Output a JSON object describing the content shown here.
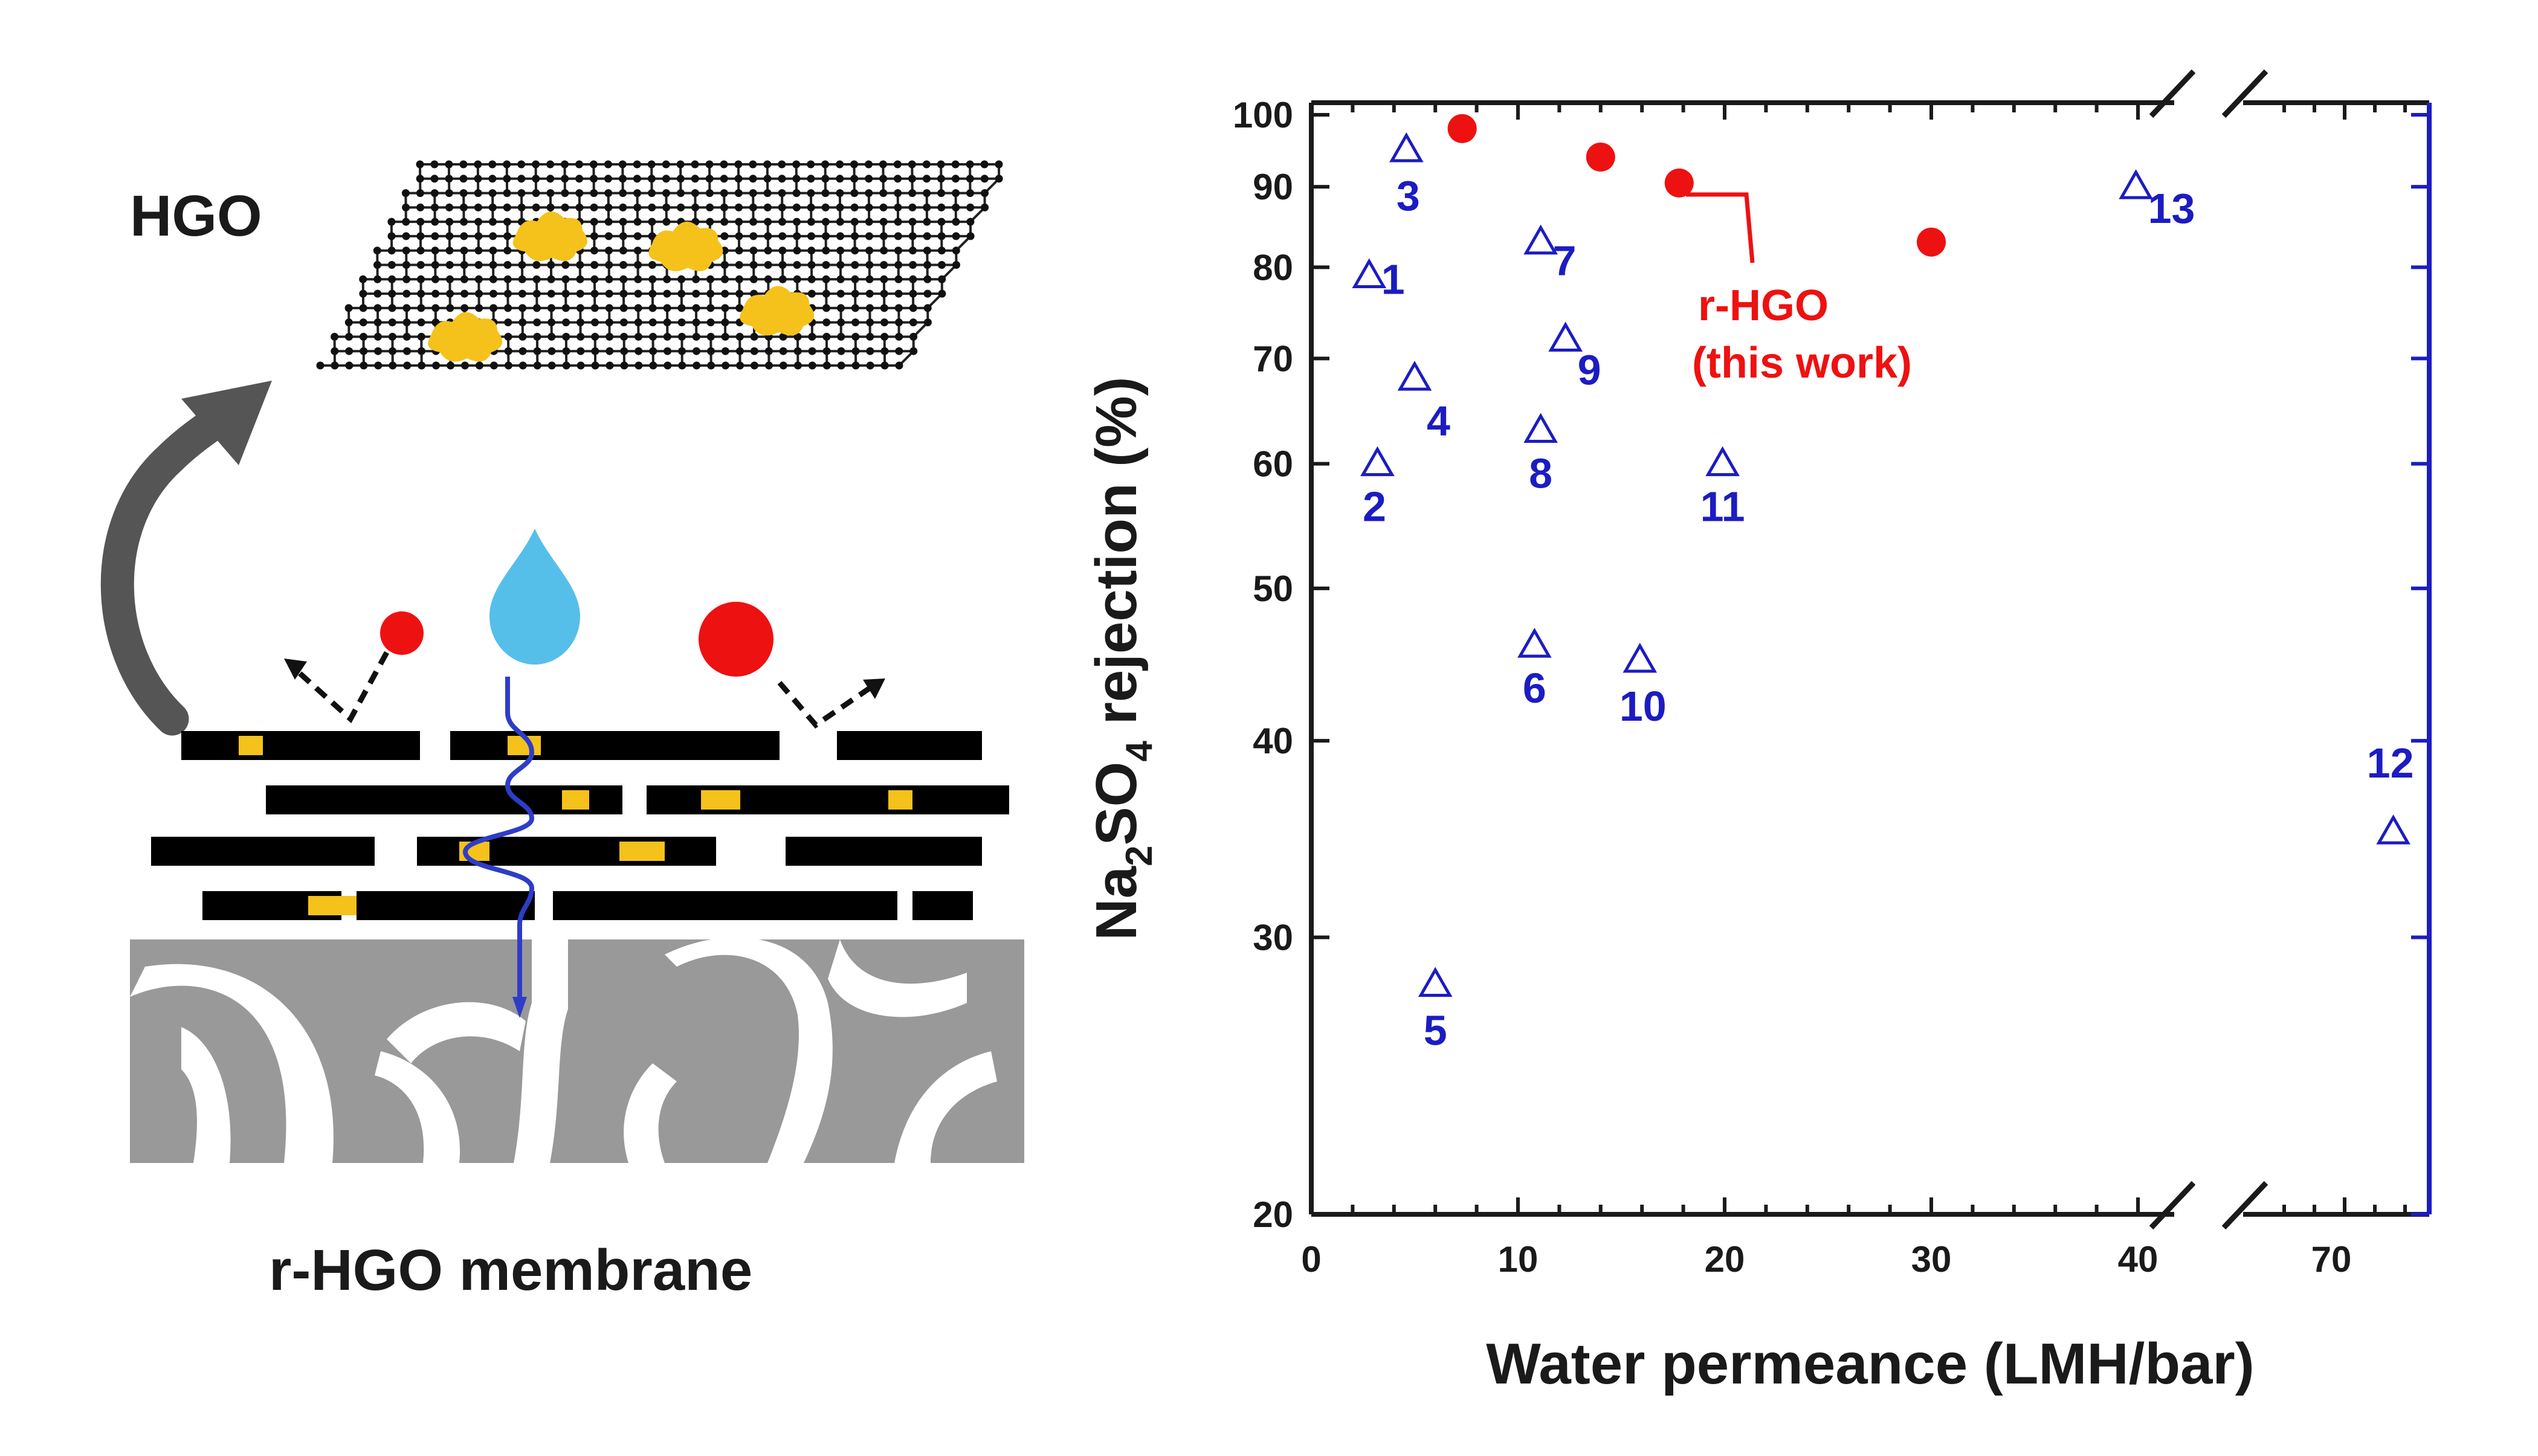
{
  "schematic": {
    "top_label": "HGO",
    "bottom_label": "r-HGO membrane",
    "colors": {
      "sheet": "#000000",
      "holes": "#f5c21b",
      "water": "#55bfea",
      "ion": "#ee1111",
      "water_path": "#2e3cc8",
      "substrate": "#999999",
      "arrow": "#555555"
    }
  },
  "chart_data": {
    "type": "scatter",
    "xlabel": "Water permeance (LMH/bar)",
    "ylabel_parts": {
      "main_pre": "Na",
      "sub1": "2",
      "mid": "SO",
      "sub2": "4",
      "main_post": " rejection (%)"
    },
    "x_scale": "broken-linear",
    "x_segments": [
      {
        "range": [
          0,
          40
        ]
      },
      {
        "range": [
          70,
          70
        ]
      }
    ],
    "x_ticks": [
      0,
      10,
      20,
      30,
      40,
      70
    ],
    "x_tick_labels": [
      "0",
      "10",
      "20",
      "30",
      "40",
      "70"
    ],
    "y_scale": "log",
    "ylim": [
      20,
      100
    ],
    "y_ticks": [
      20,
      30,
      40,
      50,
      60,
      70,
      80,
      90,
      100
    ],
    "y_tick_labels": [
      "20",
      "30",
      "40",
      "50",
      "60",
      "70",
      "80",
      "90",
      "100"
    ],
    "series": [
      {
        "marker": "circle",
        "color": "#ee1111",
        "label_lines": [
          "r-HGO",
          "(this work)"
        ],
        "points": [
          {
            "x": 7.3,
            "y": 98
          },
          {
            "x": 14.0,
            "y": 94
          },
          {
            "x": 17.8,
            "y": 90.5
          },
          {
            "x": 30.0,
            "y": 83
          }
        ]
      },
      {
        "marker": "triangle-open",
        "color": "#1c1cc2",
        "points": [
          {
            "x": 2.8,
            "y": 79,
            "label": "1"
          },
          {
            "x": 3.2,
            "y": 60,
            "label": "2"
          },
          {
            "x": 4.6,
            "y": 95,
            "label": "3"
          },
          {
            "x": 5.0,
            "y": 68,
            "label": "4"
          },
          {
            "x": 6.0,
            "y": 28,
            "label": "5"
          },
          {
            "x": 10.8,
            "y": 46,
            "label": "6"
          },
          {
            "x": 11.1,
            "y": 83,
            "label": "7"
          },
          {
            "x": 11.1,
            "y": 63,
            "label": "8"
          },
          {
            "x": 12.3,
            "y": 72,
            "label": "9"
          },
          {
            "x": 15.9,
            "y": 45,
            "label": "10"
          },
          {
            "x": 19.9,
            "y": 60,
            "label": "11"
          },
          {
            "x": 73,
            "y": 35,
            "label": "12"
          },
          {
            "x": 39.9,
            "y": 90,
            "label": "13"
          }
        ]
      }
    ],
    "axis_color": "#1c1cc2",
    "grid": false
  }
}
